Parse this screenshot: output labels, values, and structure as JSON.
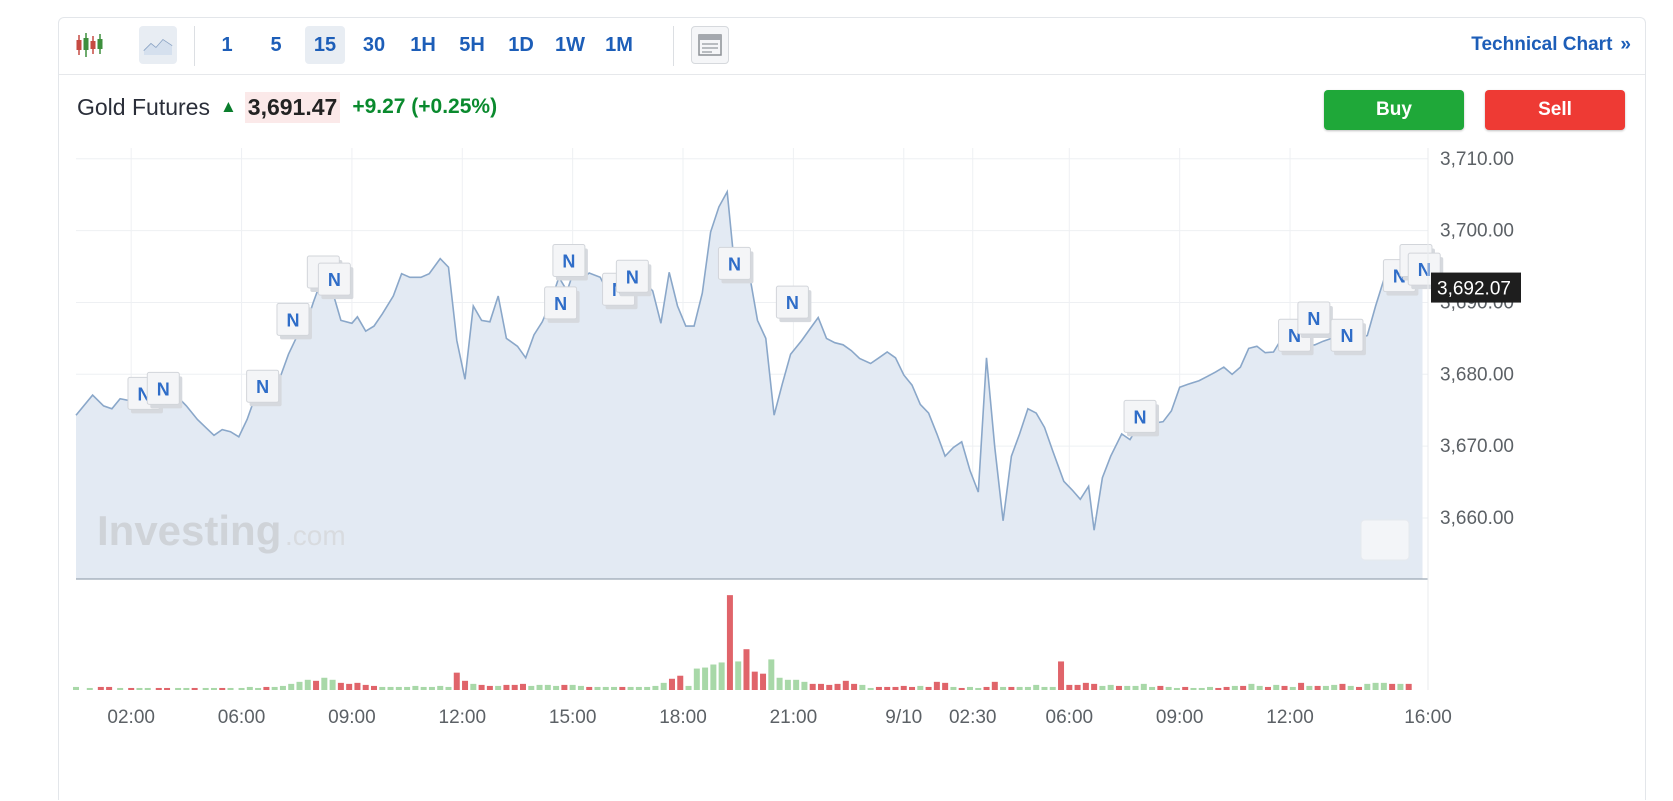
{
  "toolbar": {
    "chart_types": [
      {
        "icon": "candlestick-icon",
        "active": false
      },
      {
        "icon": "line-chart-icon",
        "active": true
      }
    ],
    "intervals": [
      {
        "label": "1",
        "active": false
      },
      {
        "label": "5",
        "active": false
      },
      {
        "label": "15",
        "active": true
      },
      {
        "label": "30",
        "active": false
      },
      {
        "label": "1H",
        "active": false
      },
      {
        "label": "5H",
        "active": false
      },
      {
        "label": "1D",
        "active": false
      },
      {
        "label": "1W",
        "active": false
      },
      {
        "label": "1M",
        "active": false
      }
    ],
    "layout_icon": "layout-icon",
    "technical_chart_label": "Technical Chart",
    "technical_chart_arrow": "»"
  },
  "header": {
    "instrument": "Gold Futures",
    "last_price": "3,691.47",
    "change": "+9.27 (+0.25%)",
    "direction": "up"
  },
  "actions": {
    "buy_label": "Buy",
    "sell_label": "Sell"
  },
  "watermark": {
    "brand": "Investing",
    "suffix": ".com"
  },
  "chart_data": {
    "type": "area",
    "x_tick_labels": [
      "02:00",
      "06:00",
      "09:00",
      "12:00",
      "15:00",
      "18:00",
      "21:00",
      "9/10",
      "02:30",
      "06:00",
      "09:00",
      "12:00",
      "16:00"
    ],
    "y_tick_labels": [
      "3,710.00",
      "3,700.00",
      "3,690.00",
      "3,680.00",
      "3,670.00",
      "3,660.00"
    ],
    "ylim": [
      3651.5,
      3711.5
    ],
    "current_price_label": "3,692.07",
    "current_price": 3692.07,
    "grid": true,
    "price_series": [
      [
        0.0,
        3674.3
      ],
      [
        0.6,
        3677.1
      ],
      [
        1.0,
        3675.6
      ],
      [
        1.3,
        3675.2
      ],
      [
        1.6,
        3676.6
      ],
      [
        2.0,
        3676.3
      ],
      [
        2.3,
        3676.9
      ],
      [
        2.6,
        3676.3
      ],
      [
        2.9,
        3677.9
      ],
      [
        3.3,
        3677.6
      ],
      [
        3.6,
        3677.2
      ],
      [
        4.0,
        3675.6
      ],
      [
        4.4,
        3673.7
      ],
      [
        4.7,
        3672.6
      ],
      [
        5.0,
        3671.5
      ],
      [
        5.3,
        3672.3
      ],
      [
        5.6,
        3672.0
      ],
      [
        5.9,
        3671.3
      ],
      [
        6.2,
        3673.7
      ],
      [
        6.5,
        3676.9
      ],
      [
        6.8,
        3678.0
      ],
      [
        7.1,
        3679.3
      ],
      [
        7.4,
        3679.6
      ],
      [
        7.7,
        3682.8
      ],
      [
        8.0,
        3685.2
      ],
      [
        8.3,
        3686.5
      ],
      [
        8.6,
        3690.0
      ],
      [
        8.9,
        3693.2
      ],
      [
        9.2,
        3692.8
      ],
      [
        9.6,
        3687.5
      ],
      [
        10.0,
        3687.1
      ],
      [
        10.2,
        3688.0
      ],
      [
        10.5,
        3686.0
      ],
      [
        10.8,
        3686.7
      ],
      [
        11.1,
        3688.4
      ],
      [
        11.5,
        3690.9
      ],
      [
        11.8,
        3694.0
      ],
      [
        12.1,
        3693.5
      ],
      [
        12.5,
        3693.5
      ],
      [
        12.8,
        3694.0
      ],
      [
        13.2,
        3696.1
      ],
      [
        13.5,
        3694.9
      ],
      [
        13.8,
        3684.7
      ],
      [
        14.1,
        3679.3
      ],
      [
        14.4,
        3689.5
      ],
      [
        14.7,
        3687.5
      ],
      [
        15.0,
        3687.3
      ],
      [
        15.3,
        3690.9
      ],
      [
        15.6,
        3685.0
      ],
      [
        16.0,
        3683.9
      ],
      [
        16.3,
        3682.3
      ],
      [
        16.6,
        3685.5
      ],
      [
        16.9,
        3687.3
      ],
      [
        17.2,
        3690.0
      ],
      [
        17.5,
        3693.5
      ],
      [
        17.8,
        3691.6
      ],
      [
        18.0,
        3693.9
      ],
      [
        18.3,
        3693.2
      ],
      [
        18.6,
        3694.1
      ],
      [
        19.0,
        3693.5
      ],
      [
        19.3,
        3691.3
      ],
      [
        19.6,
        3692.5
      ],
      [
        19.9,
        3692.1
      ],
      [
        20.3,
        3693.2
      ],
      [
        20.6,
        3692.8
      ],
      [
        20.9,
        3691.6
      ],
      [
        21.2,
        3687.1
      ],
      [
        21.5,
        3694.2
      ],
      [
        21.8,
        3689.5
      ],
      [
        22.1,
        3686.7
      ],
      [
        22.4,
        3686.7
      ],
      [
        22.7,
        3691.3
      ],
      [
        23.0,
        3699.8
      ],
      [
        23.3,
        3703.3
      ],
      [
        23.6,
        3705.4
      ],
      [
        23.8,
        3697.6
      ],
      [
        24.0,
        3695.2
      ],
      [
        24.4,
        3694.1
      ],
      [
        24.7,
        3687.5
      ],
      [
        25.0,
        3685.0
      ],
      [
        25.3,
        3674.3
      ],
      [
        25.6,
        3678.7
      ],
      [
        25.9,
        3682.8
      ],
      [
        26.3,
        3684.7
      ],
      [
        26.6,
        3686.3
      ],
      [
        26.9,
        3687.9
      ],
      [
        27.2,
        3685.0
      ],
      [
        27.5,
        3684.4
      ],
      [
        27.8,
        3684.1
      ],
      [
        28.1,
        3683.3
      ],
      [
        28.4,
        3682.2
      ],
      [
        28.8,
        3681.5
      ],
      [
        29.1,
        3682.3
      ],
      [
        29.4,
        3683.1
      ],
      [
        29.7,
        3682.3
      ],
      [
        30.0,
        3679.9
      ],
      [
        30.3,
        3678.5
      ],
      [
        30.6,
        3675.8
      ],
      [
        30.9,
        3674.6
      ],
      [
        31.2,
        3671.7
      ],
      [
        31.5,
        3668.6
      ],
      [
        31.8,
        3669.8
      ],
      [
        32.1,
        3670.6
      ],
      [
        32.4,
        3666.6
      ],
      [
        32.7,
        3663.6
      ],
      [
        33.0,
        3682.3
      ],
      [
        33.3,
        3669.8
      ],
      [
        33.6,
        3659.6
      ],
      [
        33.9,
        3668.6
      ],
      [
        34.2,
        3671.7
      ],
      [
        34.5,
        3675.2
      ],
      [
        34.8,
        3674.6
      ],
      [
        35.1,
        3672.6
      ],
      [
        35.4,
        3669.3
      ],
      [
        35.8,
        3665.1
      ],
      [
        36.1,
        3663.9
      ],
      [
        36.4,
        3662.6
      ],
      [
        36.7,
        3664.4
      ],
      [
        36.9,
        3658.3
      ],
      [
        37.2,
        3665.6
      ],
      [
        37.5,
        3668.6
      ],
      [
        37.9,
        3671.7
      ],
      [
        38.2,
        3670.9
      ],
      [
        38.5,
        3672.8
      ],
      [
        38.8,
        3673.6
      ],
      [
        39.1,
        3673.2
      ],
      [
        39.4,
        3673.4
      ],
      [
        39.7,
        3674.9
      ],
      [
        40.0,
        3678.2
      ],
      [
        40.3,
        3678.6
      ],
      [
        40.7,
        3679.1
      ],
      [
        41.0,
        3679.7
      ],
      [
        41.3,
        3680.3
      ],
      [
        41.6,
        3681.0
      ],
      [
        41.9,
        3680.0
      ],
      [
        42.2,
        3681.0
      ],
      [
        42.5,
        3683.6
      ],
      [
        42.8,
        3683.9
      ],
      [
        43.1,
        3683.0
      ],
      [
        43.4,
        3683.1
      ],
      [
        43.7,
        3685.0
      ],
      [
        44.0,
        3686.8
      ],
      [
        44.3,
        3684.4
      ],
      [
        44.6,
        3683.9
      ],
      [
        44.9,
        3684.1
      ],
      [
        45.2,
        3684.6
      ],
      [
        45.5,
        3685.0
      ],
      [
        45.8,
        3685.1
      ],
      [
        46.1,
        3684.6
      ],
      [
        46.5,
        3685.0
      ],
      [
        46.8,
        3685.4
      ],
      [
        47.1,
        3689.5
      ],
      [
        47.4,
        3693.2
      ],
      [
        47.7,
        3692.1
      ],
      [
        48.0,
        3693.0
      ],
      [
        48.4,
        3692.1
      ],
      [
        48.8,
        3692.3
      ]
    ],
    "volume_series": [
      [
        0.0,
        3,
        "up"
      ],
      [
        0.5,
        2,
        "up"
      ],
      [
        0.9,
        3,
        "down"
      ],
      [
        1.2,
        3,
        "down"
      ],
      [
        1.6,
        2,
        "up"
      ],
      [
        2.0,
        2,
        "down"
      ],
      [
        2.3,
        2,
        "up"
      ],
      [
        2.6,
        2,
        "up"
      ],
      [
        3.0,
        2,
        "down"
      ],
      [
        3.3,
        2,
        "down"
      ],
      [
        3.7,
        2,
        "up"
      ],
      [
        4.0,
        2,
        "up"
      ],
      [
        4.3,
        2,
        "down"
      ],
      [
        4.7,
        2,
        "up"
      ],
      [
        5.0,
        2,
        "up"
      ],
      [
        5.3,
        2,
        "down"
      ],
      [
        5.6,
        2,
        "up"
      ],
      [
        6.0,
        2,
        "up"
      ],
      [
        6.3,
        3,
        "up"
      ],
      [
        6.6,
        2,
        "up"
      ],
      [
        6.9,
        3,
        "down"
      ],
      [
        7.2,
        3,
        "up"
      ],
      [
        7.5,
        4,
        "up"
      ],
      [
        7.8,
        6,
        "up"
      ],
      [
        8.1,
        8,
        "up"
      ],
      [
        8.4,
        10,
        "up"
      ],
      [
        8.7,
        9,
        "down"
      ],
      [
        9.0,
        12,
        "up"
      ],
      [
        9.3,
        10,
        "up"
      ],
      [
        9.6,
        7,
        "down"
      ],
      [
        9.9,
        6,
        "down"
      ],
      [
        10.2,
        7,
        "down"
      ],
      [
        10.5,
        5,
        "down"
      ],
      [
        10.8,
        4,
        "down"
      ],
      [
        11.1,
        3,
        "up"
      ],
      [
        11.4,
        3,
        "up"
      ],
      [
        11.7,
        3,
        "up"
      ],
      [
        12.0,
        3,
        "up"
      ],
      [
        12.3,
        4,
        "up"
      ],
      [
        12.6,
        3,
        "up"
      ],
      [
        12.9,
        3,
        "up"
      ],
      [
        13.2,
        4,
        "up"
      ],
      [
        13.5,
        3,
        "up"
      ],
      [
        13.8,
        17,
        "down"
      ],
      [
        14.1,
        9,
        "down"
      ],
      [
        14.4,
        6,
        "up"
      ],
      [
        14.7,
        5,
        "down"
      ],
      [
        15.0,
        4,
        "down"
      ],
      [
        15.3,
        4,
        "up"
      ],
      [
        15.6,
        5,
        "down"
      ],
      [
        15.9,
        5,
        "down"
      ],
      [
        16.2,
        6,
        "down"
      ],
      [
        16.5,
        4,
        "up"
      ],
      [
        16.8,
        5,
        "up"
      ],
      [
        17.1,
        5,
        "up"
      ],
      [
        17.4,
        4,
        "up"
      ],
      [
        17.7,
        5,
        "down"
      ],
      [
        18.0,
        5,
        "up"
      ],
      [
        18.3,
        4,
        "up"
      ],
      [
        18.6,
        3,
        "down"
      ],
      [
        18.9,
        3,
        "up"
      ],
      [
        19.2,
        3,
        "up"
      ],
      [
        19.5,
        3,
        "up"
      ],
      [
        19.8,
        3,
        "down"
      ],
      [
        20.1,
        3,
        "up"
      ],
      [
        20.4,
        3,
        "up"
      ],
      [
        20.7,
        3,
        "up"
      ],
      [
        21.0,
        4,
        "up"
      ],
      [
        21.3,
        7,
        "up"
      ],
      [
        21.6,
        11,
        "down"
      ],
      [
        21.9,
        14,
        "down"
      ],
      [
        22.2,
        4,
        "up"
      ],
      [
        22.5,
        21,
        "up"
      ],
      [
        22.8,
        22,
        "up"
      ],
      [
        23.1,
        25,
        "up"
      ],
      [
        23.4,
        27,
        "up"
      ],
      [
        23.7,
        93,
        "down"
      ],
      [
        24.0,
        28,
        "up"
      ],
      [
        24.3,
        40,
        "down"
      ],
      [
        24.6,
        18,
        "down"
      ],
      [
        24.9,
        16,
        "down"
      ],
      [
        25.2,
        30,
        "up"
      ],
      [
        25.5,
        12,
        "up"
      ],
      [
        25.8,
        10,
        "up"
      ],
      [
        26.1,
        10,
        "up"
      ],
      [
        26.4,
        8,
        "up"
      ],
      [
        26.7,
        6,
        "down"
      ],
      [
        27.0,
        6,
        "down"
      ],
      [
        27.3,
        5,
        "down"
      ],
      [
        27.6,
        6,
        "down"
      ],
      [
        27.9,
        9,
        "down"
      ],
      [
        28.2,
        6,
        "down"
      ],
      [
        28.5,
        5,
        "up"
      ],
      [
        28.8,
        2,
        "up"
      ],
      [
        29.1,
        3,
        "down"
      ],
      [
        29.4,
        3,
        "down"
      ],
      [
        29.7,
        3,
        "down"
      ],
      [
        30.0,
        4,
        "down"
      ],
      [
        30.3,
        3,
        "down"
      ],
      [
        30.6,
        4,
        "up"
      ],
      [
        30.9,
        3,
        "down"
      ],
      [
        31.2,
        8,
        "down"
      ],
      [
        31.5,
        7,
        "down"
      ],
      [
        31.8,
        3,
        "up"
      ],
      [
        32.1,
        2,
        "down"
      ],
      [
        32.4,
        3,
        "up"
      ],
      [
        32.7,
        2,
        "up"
      ],
      [
        33.0,
        3,
        "down"
      ],
      [
        33.3,
        8,
        "down"
      ],
      [
        33.6,
        3,
        "up"
      ],
      [
        33.9,
        3,
        "down"
      ],
      [
        34.2,
        3,
        "up"
      ],
      [
        34.5,
        3,
        "up"
      ],
      [
        34.8,
        5,
        "up"
      ],
      [
        35.1,
        3,
        "up"
      ],
      [
        35.4,
        3,
        "up"
      ],
      [
        35.7,
        28,
        "down"
      ],
      [
        36.0,
        5,
        "down"
      ],
      [
        36.3,
        5,
        "down"
      ],
      [
        36.6,
        7,
        "down"
      ],
      [
        36.9,
        6,
        "down"
      ],
      [
        37.2,
        4,
        "up"
      ],
      [
        37.5,
        5,
        "up"
      ],
      [
        37.8,
        4,
        "down"
      ],
      [
        38.1,
        4,
        "up"
      ],
      [
        38.4,
        4,
        "up"
      ],
      [
        38.7,
        6,
        "up"
      ],
      [
        39.0,
        3,
        "up"
      ],
      [
        39.3,
        4,
        "down"
      ],
      [
        39.6,
        3,
        "up"
      ],
      [
        39.9,
        2,
        "up"
      ],
      [
        40.2,
        3,
        "down"
      ],
      [
        40.5,
        2,
        "up"
      ],
      [
        40.8,
        2,
        "up"
      ],
      [
        41.1,
        3,
        "up"
      ],
      [
        41.4,
        2,
        "down"
      ],
      [
        41.7,
        3,
        "down"
      ],
      [
        42.0,
        4,
        "up"
      ],
      [
        42.3,
        4,
        "down"
      ],
      [
        42.6,
        6,
        "up"
      ],
      [
        42.9,
        4,
        "up"
      ],
      [
        43.2,
        3,
        "down"
      ],
      [
        43.5,
        5,
        "up"
      ],
      [
        43.8,
        4,
        "down"
      ],
      [
        44.1,
        3,
        "up"
      ],
      [
        44.4,
        7,
        "down"
      ],
      [
        44.7,
        4,
        "up"
      ],
      [
        45.0,
        4,
        "down"
      ],
      [
        45.3,
        4,
        "up"
      ],
      [
        45.6,
        5,
        "up"
      ],
      [
        45.9,
        6,
        "down"
      ],
      [
        46.2,
        4,
        "up"
      ],
      [
        46.5,
        3,
        "down"
      ],
      [
        46.8,
        6,
        "up"
      ],
      [
        47.1,
        7,
        "up"
      ],
      [
        47.4,
        7,
        "up"
      ],
      [
        47.7,
        6,
        "down"
      ],
      [
        48.0,
        6,
        "up"
      ],
      [
        48.3,
        6,
        "down"
      ]
    ],
    "news_markers": [
      {
        "label": "N",
        "t": 2.5,
        "price": 3677.2
      },
      {
        "label": "N",
        "t": 3.2,
        "price": 3677.9
      },
      {
        "label": "N",
        "t": 6.8,
        "price": 3678.2
      },
      {
        "label": "N",
        "t": 7.9,
        "price": 3687.5
      },
      {
        "label": "N",
        "t": 9.0,
        "price": 3694.1
      },
      {
        "label": "N",
        "t": 9.4,
        "price": 3693.1
      },
      {
        "label": "N",
        "t": 17.6,
        "price": 3689.8
      },
      {
        "label": "N",
        "t": 17.9,
        "price": 3695.7
      },
      {
        "label": "N",
        "t": 19.7,
        "price": 3691.7
      },
      {
        "label": "N",
        "t": 20.2,
        "price": 3693.5
      },
      {
        "label": "N",
        "t": 23.9,
        "price": 3695.3
      },
      {
        "label": "N",
        "t": 26.0,
        "price": 3689.9
      },
      {
        "label": "N",
        "t": 38.6,
        "price": 3674.0
      },
      {
        "label": "N",
        "t": 44.2,
        "price": 3685.3
      },
      {
        "label": "N",
        "t": 44.9,
        "price": 3687.7
      },
      {
        "label": "N",
        "t": 46.1,
        "price": 3685.3
      },
      {
        "label": "N",
        "t": 48.0,
        "price": 3693.6
      },
      {
        "label": "N",
        "t": 48.6,
        "price": 3695.7
      },
      {
        "label": "N",
        "t": 48.9,
        "price": 3694.5
      }
    ]
  }
}
